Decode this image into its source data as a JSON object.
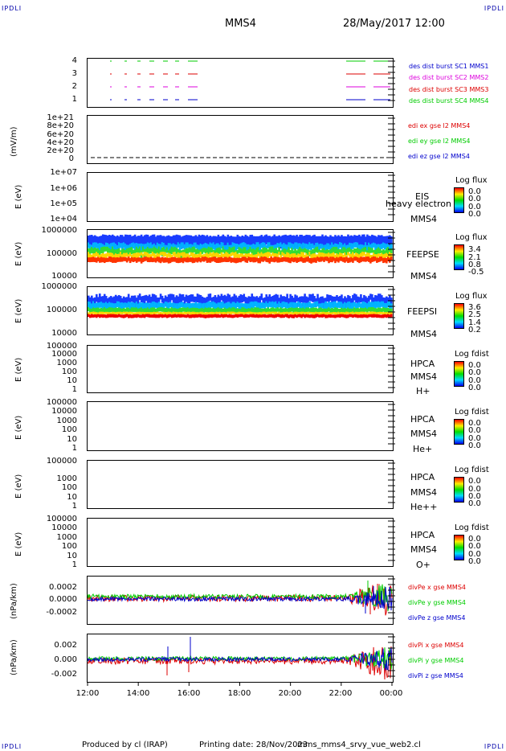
{
  "corners": {
    "tl": "IPDLI",
    "tr": "IPDLI",
    "bl": "IPDLI",
    "br": "IPDLI"
  },
  "header": {
    "spacecraft": "MMS4",
    "date": "28/May/2017 12:00"
  },
  "footer": {
    "produced_by": "Produced by cl (IRAP)",
    "printing_date": "Printing date: 28/Nov/2023",
    "filename": "mms_mms4_srvy_vue_web2.cl"
  },
  "colors": {
    "red": "#dd0000",
    "green": "#00cc00",
    "blue": "#0000cc",
    "magenta": "#dd00dd"
  },
  "x_ticks": [
    "12:00",
    "14:00",
    "16:00",
    "18:00",
    "20:00",
    "22:00",
    "00:00"
  ],
  "chart_data": [
    {
      "type": "scatter",
      "ytick_labels": [
        "1",
        "2",
        "3",
        "4"
      ],
      "legend": [
        "des dist burst SC1 MMS1",
        "des dist burst SC2 MMS2",
        "des dist burst SC3 MMS3",
        "des dist burst SC4 MMS4"
      ]
    },
    {
      "type": "line",
      "ylabel": "(mV/m)",
      "ytick_labels": [
        "1e+21",
        "8e+20",
        "6e+20",
        "4e+20",
        "2e+20",
        "0"
      ],
      "legend": [
        "edi ex gse l2 MMS4",
        "edi ey gse l2 MMS4",
        "edi ez gse l2 MMS4"
      ]
    },
    {
      "type": "heatmap",
      "ylabel": "E (eV)",
      "ytick_labels": [
        "1e+07",
        "1e+06",
        "1e+05",
        "1e+04"
      ],
      "right_labels": [
        "EIS",
        "MMS4"
      ],
      "overlay_text": "heavy electron to",
      "colorbar": {
        "title": "Log flux",
        "values": [
          "0.0",
          "0.0",
          "0.0",
          "0.0"
        ]
      }
    },
    {
      "type": "heatmap",
      "ylabel": "E (eV)",
      "ytick_labels": [
        "1000000",
        "100000",
        "10000"
      ],
      "right_labels": [
        "FEEPSE",
        "MMS4"
      ],
      "colorbar": {
        "title": "Log flux",
        "values": [
          "3.4",
          "2.1",
          "0.8",
          "-0.5"
        ]
      }
    },
    {
      "type": "heatmap",
      "ylabel": "E (eV)",
      "ytick_labels": [
        "1000000",
        "100000",
        "10000"
      ],
      "right_labels": [
        "FEEPSI",
        "MMS4"
      ],
      "colorbar": {
        "title": "Log flux",
        "values": [
          "3.6",
          "2.5",
          "1.4",
          "0.2"
        ]
      }
    },
    {
      "type": "heatmap",
      "ylabel": "E (eV)",
      "ytick_labels": [
        "100000",
        "10000",
        "1000",
        "100",
        "10",
        "1"
      ],
      "right_labels": [
        "HPCA",
        "MMS4",
        "H+"
      ],
      "colorbar": {
        "title": "Log fdist",
        "values": [
          "0.0",
          "0.0",
          "0.0",
          "0.0"
        ]
      }
    },
    {
      "type": "heatmap",
      "ylabel": "E (eV)",
      "ytick_labels": [
        "100000",
        "10000",
        "1000",
        "100",
        "10",
        "1"
      ],
      "right_labels": [
        "HPCA",
        "MMS4",
        "He+"
      ],
      "colorbar": {
        "title": "Log fdist",
        "values": [
          "0.0",
          "0.0",
          "0.0",
          "0.0"
        ]
      }
    },
    {
      "type": "heatmap",
      "ylabel": "E (eV)",
      "ytick_labels": [
        "100000",
        "1000",
        "100",
        "10",
        "1"
      ],
      "right_labels": [
        "HPCA",
        "MMS4",
        "He++"
      ],
      "colorbar": {
        "title": "Log fdist",
        "values": [
          "0.0",
          "0.0",
          "0.0",
          "0.0"
        ]
      }
    },
    {
      "type": "heatmap",
      "ylabel": "E (eV)",
      "ytick_labels": [
        "100000",
        "10000",
        "1000",
        "100",
        "10",
        "1"
      ],
      "right_labels": [
        "HPCA",
        "MMS4",
        "O+"
      ],
      "colorbar": {
        "title": "Log fdist",
        "values": [
          "0.0",
          "0.0",
          "0.0",
          "0.0"
        ]
      }
    },
    {
      "type": "line",
      "ylabel": "(nPa/km)",
      "ytick_labels": [
        "0.0002",
        "0.0000",
        "-0.0002"
      ],
      "ylim": [
        -0.0003,
        0.0003
      ],
      "legend": [
        "divPe x gse MMS4",
        "divPe y gse MMS4",
        "divPe z gse MMS4"
      ]
    },
    {
      "type": "line",
      "ylabel": "(nPa/km)",
      "ytick_labels": [
        "0.002",
        "0.000",
        "-0.002"
      ],
      "ylim": [
        -0.003,
        0.003
      ],
      "legend": [
        "divPi x gse MMS4",
        "divPi y gse MMS4",
        "divPi z gse MMS4"
      ]
    }
  ]
}
